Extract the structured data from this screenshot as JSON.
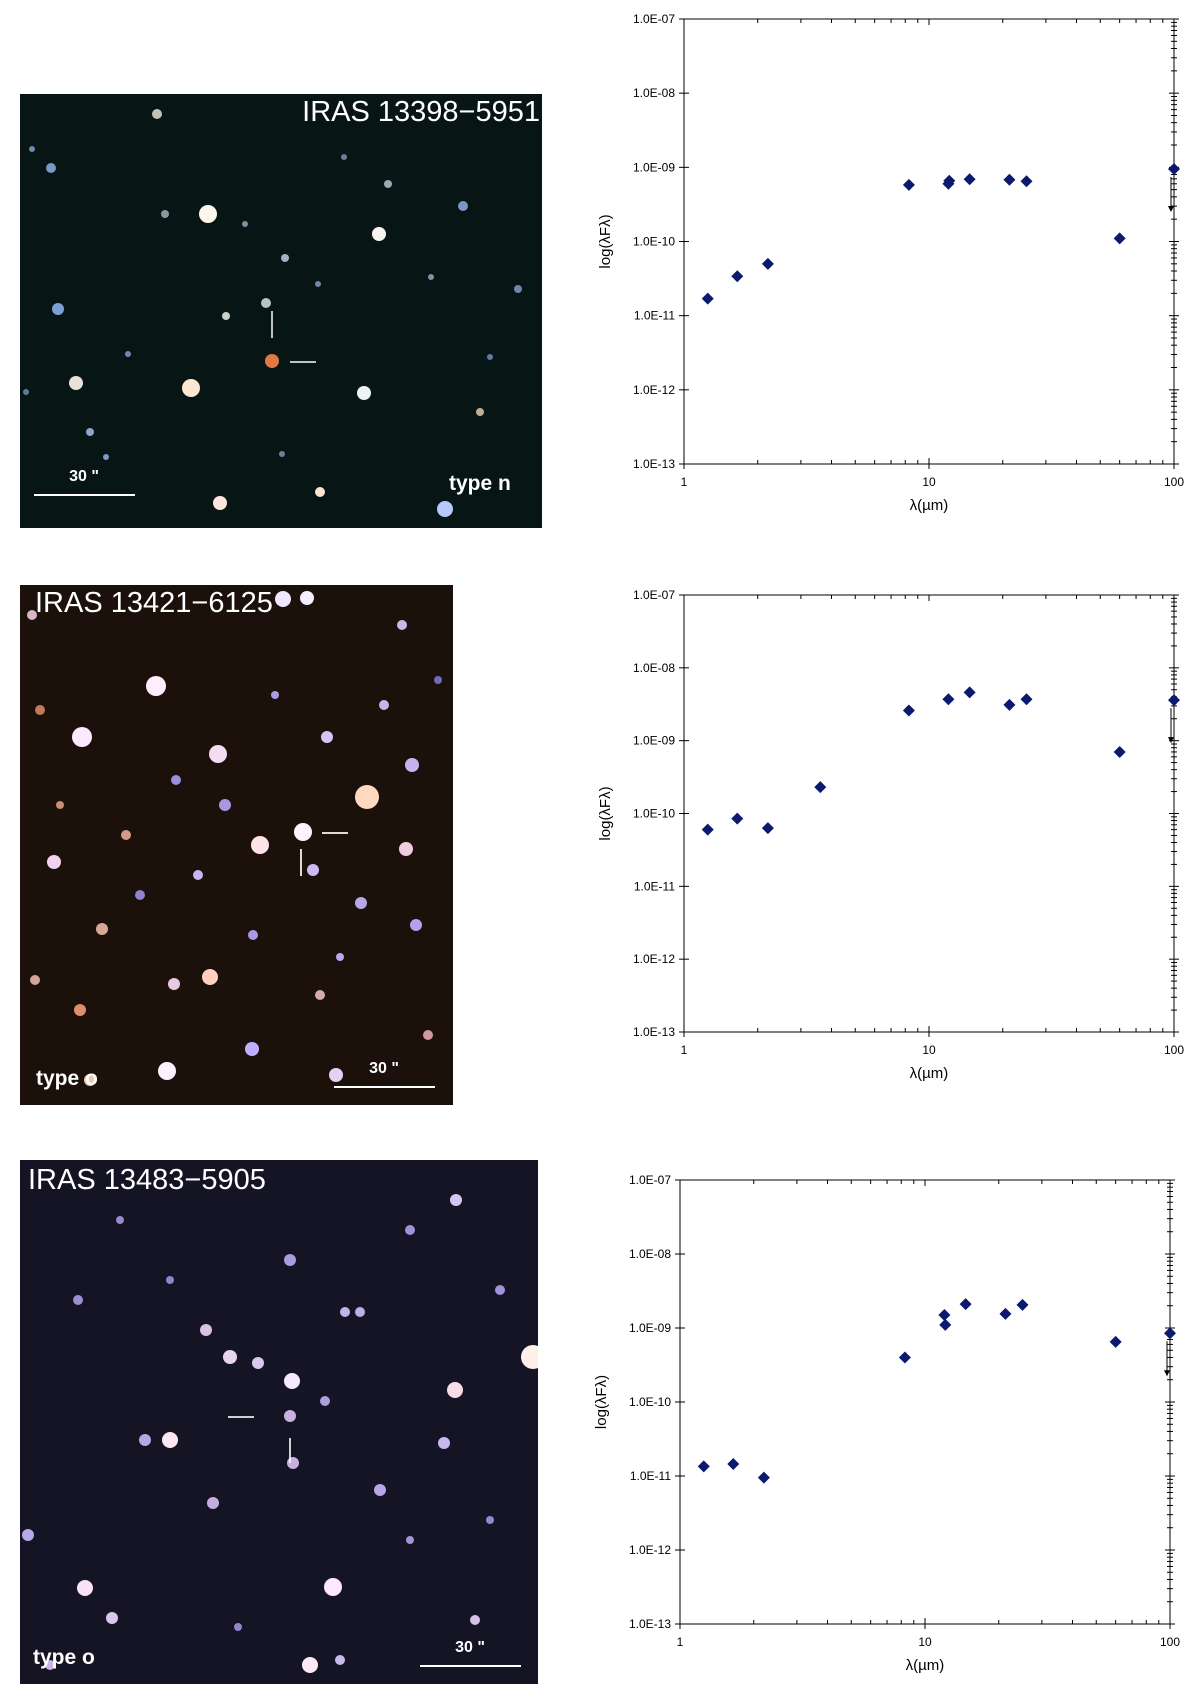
{
  "colors": {
    "marker": "#0b1a6e",
    "axis": "#000000",
    "sky": "#071414"
  },
  "images": [
    {
      "title": "IRAS 13398−5951",
      "type_label": "type n",
      "scale_label": "30 \""
    },
    {
      "title": "IRAS 13421−6125",
      "type_label": "type o",
      "scale_label": "30 \""
    },
    {
      "title": "IRAS 13483−5905",
      "type_label": "type o",
      "scale_label": "30 \""
    }
  ],
  "chart_data": [
    {
      "type": "scatter",
      "xscale": "log",
      "yscale": "log",
      "xlim": [
        1,
        100
      ],
      "ylim": [
        1e-13,
        1e-07
      ],
      "xticks": [
        "1",
        "10",
        "100"
      ],
      "yticks": [
        "1.0E-13",
        "1.0E-12",
        "1.0E-11",
        "1.0E-10",
        "1.0E-09",
        "1.0E-08",
        "1.0E-07"
      ],
      "xlabel": "λ(µm)",
      "ylabel": "log(λFλ)",
      "points": [
        {
          "x": 1.25,
          "y": 1.7e-11
        },
        {
          "x": 1.65,
          "y": 3.4e-11
        },
        {
          "x": 2.2,
          "y": 5e-11
        },
        {
          "x": 8.28,
          "y": 5.8e-10
        },
        {
          "x": 12.0,
          "y": 6e-10
        },
        {
          "x": 12.1,
          "y": 6.6e-10
        },
        {
          "x": 14.65,
          "y": 6.9e-10
        },
        {
          "x": 21.3,
          "y": 6.8e-10
        },
        {
          "x": 25.0,
          "y": 6.5e-10
        },
        {
          "x": 60.0,
          "y": 1.1e-10
        },
        {
          "x": 100.0,
          "y": 9.5e-10
        }
      ],
      "upper_limit_x": 100.0
    },
    {
      "type": "scatter",
      "xscale": "log",
      "yscale": "log",
      "xlim": [
        1,
        100
      ],
      "ylim": [
        1e-13,
        1e-07
      ],
      "xticks": [
        "1",
        "10",
        "100"
      ],
      "yticks": [
        "1.0E-13",
        "1.0E-12",
        "1.0E-11",
        "1.0E-10",
        "1.0E-09",
        "1.0E-08",
        "1.0E-07"
      ],
      "xlabel": "λ(µm)",
      "ylabel": "log(λFλ)",
      "points": [
        {
          "x": 1.25,
          "y": 6e-11
        },
        {
          "x": 1.65,
          "y": 8.5e-11
        },
        {
          "x": 2.2,
          "y": 6.3e-11
        },
        {
          "x": 3.6,
          "y": 2.3e-10
        },
        {
          "x": 8.28,
          "y": 2.6e-09
        },
        {
          "x": 12.0,
          "y": 3.7e-09
        },
        {
          "x": 14.65,
          "y": 4.6e-09
        },
        {
          "x": 21.3,
          "y": 3.1e-09
        },
        {
          "x": 25.0,
          "y": 3.7e-09
        },
        {
          "x": 60.0,
          "y": 7e-10
        },
        {
          "x": 100.0,
          "y": 3.6e-09
        }
      ],
      "upper_limit_x": 100.0
    },
    {
      "type": "scatter",
      "xscale": "log",
      "yscale": "log",
      "xlim": [
        1,
        100
      ],
      "ylim": [
        1e-13,
        1e-07
      ],
      "xticks": [
        "1",
        "10",
        "100"
      ],
      "yticks": [
        "1.0E-13",
        "1.0E-12",
        "1.0E-11",
        "1.0E-10",
        "1.0E-09",
        "1.0E-08",
        "1.0E-07"
      ],
      "xlabel": "λ(µm)",
      "ylabel": "log(λFλ)",
      "points": [
        {
          "x": 1.25,
          "y": 1.35e-11
        },
        {
          "x": 1.65,
          "y": 1.45e-11
        },
        {
          "x": 2.2,
          "y": 9.5e-12
        },
        {
          "x": 8.28,
          "y": 4e-10
        },
        {
          "x": 12.0,
          "y": 1.5e-09
        },
        {
          "x": 12.1,
          "y": 1.1e-09
        },
        {
          "x": 14.65,
          "y": 2.1e-09
        },
        {
          "x": 21.3,
          "y": 1.55e-09
        },
        {
          "x": 25.0,
          "y": 2.05e-09
        },
        {
          "x": 60.0,
          "y": 6.5e-10
        },
        {
          "x": 100.0,
          "y": 8.5e-10
        }
      ],
      "upper_limit_x": 100.0
    }
  ]
}
